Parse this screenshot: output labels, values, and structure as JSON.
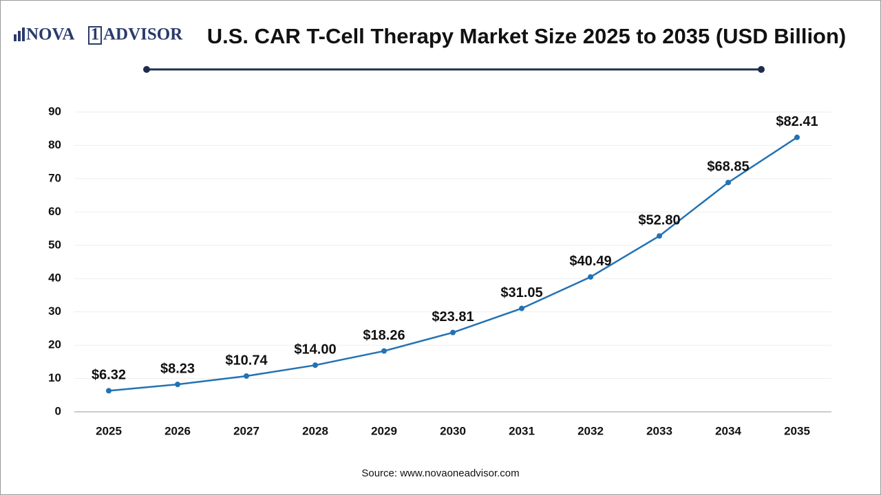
{
  "logo": [
    "NOVA",
    "1",
    "ADVISOR"
  ],
  "chart_data": {
    "type": "line",
    "title": "U.S. CAR T-Cell Therapy Market Size 2025 to 2035 (USD Billion)",
    "source": "Source: www.novaoneadvisor.com",
    "categories": [
      "2025",
      "2026",
      "2027",
      "2028",
      "2029",
      "2030",
      "2031",
      "2032",
      "2033",
      "2034",
      "2035"
    ],
    "values": [
      6.32,
      8.23,
      10.74,
      14.0,
      18.26,
      23.81,
      31.05,
      40.49,
      52.8,
      68.85,
      82.41
    ],
    "value_labels": [
      "$6.32",
      "$8.23",
      "$10.74",
      "$14.00",
      "$18.26",
      "$23.81",
      "$31.05",
      "$40.49",
      "$52.80",
      "$68.85",
      "$82.41"
    ],
    "color": "#2272b4",
    "ylim": [
      0,
      90
    ],
    "yticks": [
      0,
      10,
      20,
      30,
      40,
      50,
      60,
      70,
      80,
      90
    ],
    "grid": true
  }
}
